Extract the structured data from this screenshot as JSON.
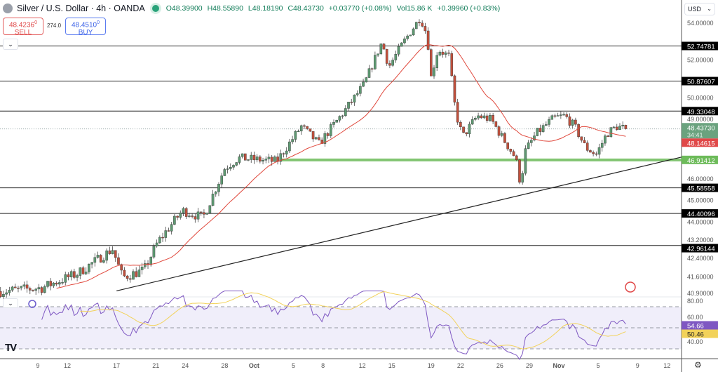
{
  "header": {
    "title": "Silver / U.S. Dollar · 4h · OANDA",
    "open": "O48.39900",
    "high": "H48.55890",
    "low": "L48.18190",
    "close": "C48.43730",
    "change": "+0.03770 (+0.08%)",
    "volume": "Vol15.86 K",
    "vol_change": "+0.39960 (+0.83%)"
  },
  "trade": {
    "sell_price": "48.4236",
    "sell_sup": "0",
    "sell_label": "SELL",
    "spread": "274.0",
    "buy_price": "48.4510",
    "buy_sup": "0",
    "buy_label": "BUY"
  },
  "currency": "USD",
  "colors": {
    "up": "#5e9a72",
    "down": "#c1503c",
    "ma": "#e0483c",
    "rsi": "#7e57c2",
    "rsi_ma": "#f2d25a",
    "support": "#6dbb5a",
    "current": "#6aa27e"
  },
  "chart_data": {
    "type": "candlestick",
    "instrument": "XAGUSD 4h",
    "price_path_days_since_sep9": [
      [
        -3.8,
        40.98
      ],
      [
        0.4,
        41.13
      ],
      [
        4.0,
        41.73
      ],
      [
        7.6,
        42.8
      ],
      [
        8.6,
        41.58
      ],
      [
        10.8,
        41.88
      ],
      [
        12.2,
        43.11
      ],
      [
        14.7,
        44.53
      ],
      [
        16.8,
        44.21
      ],
      [
        19.0,
        46.5
      ],
      [
        20.4,
        47.01
      ],
      [
        24.3,
        46.84
      ],
      [
        26.8,
        48.56
      ],
      [
        28.6,
        47.69
      ],
      [
        31.1,
        49.27
      ],
      [
        33.2,
        50.71
      ],
      [
        35.0,
        52.96
      ],
      [
        35.7,
        51.63
      ],
      [
        37.2,
        52.96
      ],
      [
        38.9,
        54.31
      ],
      [
        39.6,
        53.34
      ],
      [
        40.0,
        51.08
      ],
      [
        40.7,
        52.57
      ],
      [
        41.8,
        52.2
      ],
      [
        42.5,
        49.27
      ],
      [
        43.2,
        48.04
      ],
      [
        44.7,
        49.09
      ],
      [
        46.1,
        48.91
      ],
      [
        47.2,
        48.04
      ],
      [
        48.6,
        47.01
      ],
      [
        49.1,
        45.77
      ],
      [
        49.6,
        47.35
      ],
      [
        50.7,
        48.21
      ],
      [
        52.5,
        48.98
      ],
      [
        53.6,
        49.09
      ],
      [
        54.6,
        48.56
      ],
      [
        55.7,
        47.52
      ],
      [
        56.8,
        47.18
      ],
      [
        57.9,
        48.21
      ],
      [
        58.9,
        48.56
      ],
      [
        59.8,
        48.44
      ]
    ],
    "price_ticks": [
      "54.00000",
      "52.00000",
      "50.00000",
      "49.00000",
      "46.00000",
      "45.00000",
      "44.00000",
      "43.20000",
      "42.40000",
      "41.60000",
      "40.90000"
    ],
    "price_tick_values": [
      54,
      52,
      50,
      49,
      46,
      45,
      44,
      43.2,
      42.4,
      41.6,
      40.9
    ],
    "levels": [
      {
        "value": 52.74781,
        "label": "52.74781"
      },
      {
        "value": 50.87607,
        "label": "50.87607"
      },
      {
        "value": 49.33048,
        "label": "49.33048"
      },
      {
        "value": 45.58558,
        "label": "45.58558"
      },
      {
        "value": 44.40096,
        "label": "44.40096"
      },
      {
        "value": 42.96144,
        "label": "42.96144"
      }
    ],
    "support": {
      "value": 46.91412,
      "label": "46.91412"
    },
    "current": {
      "value": 48.4373,
      "label": "48.43730",
      "countdown": "34:41"
    },
    "ma": {
      "value": 48.14615,
      "label": "48.14615",
      "period": 20
    },
    "trendline": {
      "from": [
        8,
        41.0
      ],
      "to": [
        64,
        47.05
      ]
    },
    "rsi": {
      "value": "54.66",
      "ma_value": "50.46",
      "ticks": [
        "80.00",
        "60.00",
        "40.00"
      ],
      "tick_values": [
        80,
        60,
        40
      ],
      "bands": [
        70,
        50,
        30
      ]
    },
    "x_ticks": [
      {
        "label": "9",
        "day": 0
      },
      {
        "label": "12",
        "day": 3
      },
      {
        "label": "17",
        "day": 8
      },
      {
        "label": "21",
        "day": 12
      },
      {
        "label": "24",
        "day": 15
      },
      {
        "label": "28",
        "day": 19
      },
      {
        "label": "Oct",
        "day": 22
      },
      {
        "label": "5",
        "day": 26
      },
      {
        "label": "8",
        "day": 29
      },
      {
        "label": "12",
        "day": 33
      },
      {
        "label": "15",
        "day": 36
      },
      {
        "label": "19",
        "day": 40
      },
      {
        "label": "22",
        "day": 43
      },
      {
        "label": "26",
        "day": 47
      },
      {
        "label": "29",
        "day": 50
      },
      {
        "label": "Nov",
        "day": 53
      },
      {
        "label": "5",
        "day": 57
      },
      {
        "label": "9",
        "day": 61
      },
      {
        "label": "12",
        "day": 64
      }
    ]
  }
}
